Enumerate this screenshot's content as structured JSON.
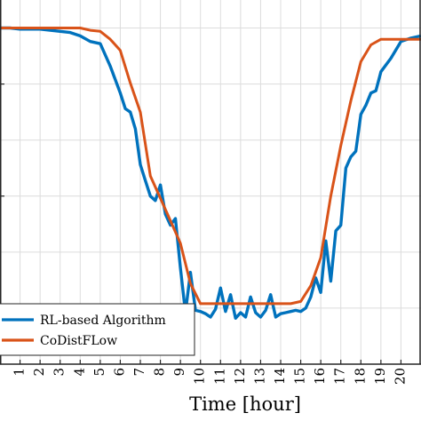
{
  "chart_data": {
    "type": "line",
    "title": "",
    "xlabel": "Time [hour]",
    "ylabel": "",
    "xlim": [
      0,
      21
    ],
    "ylim": [
      0.75,
      1.075
    ],
    "grid": true,
    "legend_position": "bottom-left",
    "x_ticks": [
      "1",
      "2",
      "3",
      "4",
      "5",
      "6",
      "7",
      "8",
      "9",
      "10",
      "11",
      "12",
      "13",
      "14",
      "15",
      "16",
      "17",
      "18",
      "19",
      "20"
    ],
    "series": [
      {
        "name": "RL-based Algorithm",
        "color": "#0072BD",
        "x": [
          0,
          0.5,
          1,
          1.5,
          2,
          2.5,
          3,
          3.5,
          4,
          4.5,
          5,
          5.5,
          6,
          6.25,
          6.5,
          6.75,
          7,
          7.25,
          7.5,
          7.75,
          8,
          8.25,
          8.5,
          8.75,
          9,
          9.25,
          9.5,
          9.75,
          10,
          10.25,
          10.5,
          10.75,
          11,
          11.25,
          11.5,
          11.75,
          12,
          12.25,
          12.5,
          12.75,
          13,
          13.25,
          13.5,
          13.75,
          14,
          14.25,
          14.5,
          14.75,
          15,
          15.25,
          15.5,
          15.75,
          16,
          16.25,
          16.5,
          16.75,
          17,
          17.25,
          17.5,
          17.75,
          18,
          18.25,
          18.5,
          18.75,
          19,
          19.5,
          20,
          20.5,
          21
        ],
        "y": [
          1.05,
          1.05,
          1.049,
          1.049,
          1.049,
          1.048,
          1.047,
          1.046,
          1.043,
          1.038,
          1.036,
          1.016,
          0.992,
          0.978,
          0.975,
          0.96,
          0.928,
          0.914,
          0.9,
          0.896,
          0.91,
          0.884,
          0.874,
          0.88,
          0.836,
          0.796,
          0.832,
          0.798,
          0.797,
          0.795,
          0.792,
          0.799,
          0.818,
          0.797,
          0.812,
          0.791,
          0.796,
          0.792,
          0.81,
          0.796,
          0.792,
          0.798,
          0.812,
          0.792,
          0.795,
          0.796,
          0.797,
          0.798,
          0.797,
          0.8,
          0.81,
          0.827,
          0.814,
          0.86,
          0.824,
          0.869,
          0.874,
          0.925,
          0.935,
          0.94,
          0.973,
          0.981,
          0.992,
          0.994,
          1.011,
          1.023,
          1.038,
          1.041,
          1.043
        ]
      },
      {
        "name": "CoDistFLow",
        "color": "#D95319",
        "x": [
          0,
          1,
          2,
          3,
          4,
          4.5,
          5,
          5.5,
          6,
          6.5,
          7,
          7.5,
          8,
          8.5,
          9,
          9.5,
          10,
          11,
          12,
          13,
          14,
          14.5,
          15,
          15.5,
          16,
          16.5,
          17,
          17.5,
          18,
          18.5,
          19,
          19.5,
          20,
          20.5,
          21
        ],
        "y": [
          1.05,
          1.05,
          1.05,
          1.05,
          1.05,
          1.048,
          1.047,
          1.04,
          1.03,
          1.001,
          0.975,
          0.918,
          0.898,
          0.878,
          0.858,
          0.822,
          0.804,
          0.804,
          0.804,
          0.804,
          0.804,
          0.804,
          0.806,
          0.82,
          0.845,
          0.9,
          0.945,
          0.985,
          1.02,
          1.035,
          1.04,
          1.04,
          1.04,
          1.04,
          1.04
        ]
      }
    ]
  }
}
